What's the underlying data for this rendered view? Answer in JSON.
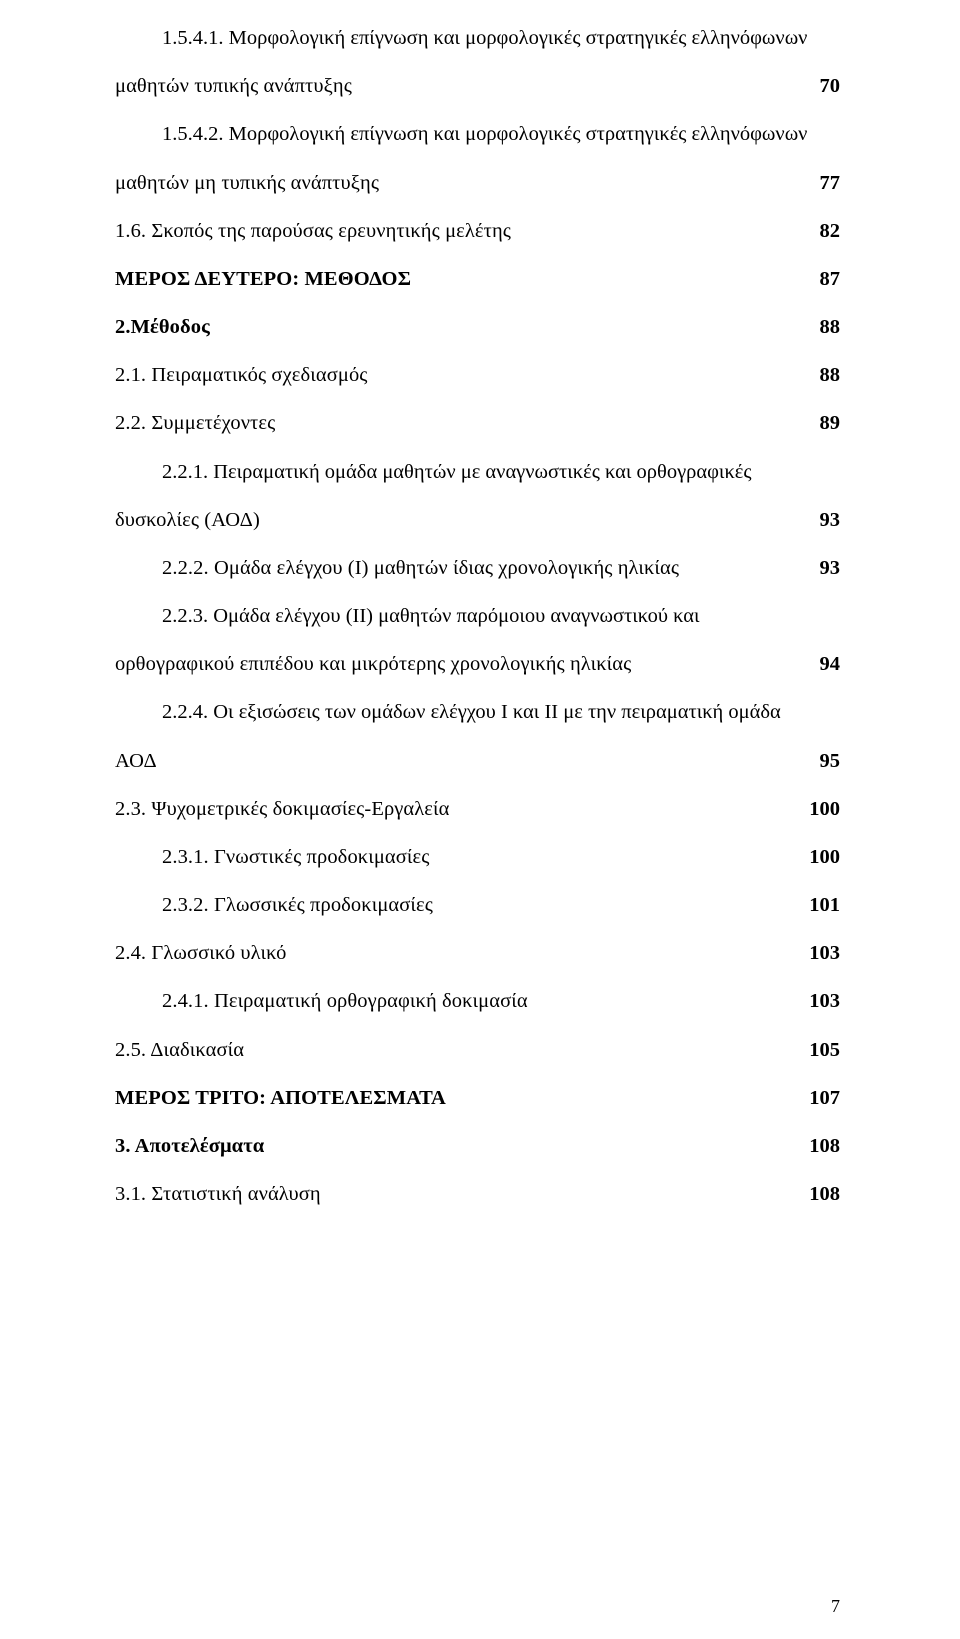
{
  "entries": {
    "e1_first": "1.5.4.1. Μορφολογική επίγνωση και μορφολογικές στρατηγικές ελληνόφωνων",
    "e1_cont": "μαθητών τυπικής ανάπτυξης",
    "e1_pg": "70",
    "e2_first": "1.5.4.2. Μορφολογική επίγνωση και μορφολογικές στρατηγικές ελληνόφωνων",
    "e2_cont": "μαθητών μη τυπικής ανάπτυξης",
    "e2_pg": "77",
    "e3": "1.6. Σκοπός της παρούσας ερευνητικής μελέτης",
    "e3_pg": "82",
    "e4": "ΜΕΡΟΣ ΔΕΥΤΕΡΟ: ΜΕΘΟΔΟΣ",
    "e4_pg": "87",
    "e5": "2.Μέθοδος",
    "e5_pg": "88",
    "e6": "2.1. Πειραματικός σχεδιασμός",
    "e6_pg": "88",
    "e7": "2.2. Συμμετέχοντες",
    "e7_pg": "89",
    "e8_first": "2.2.1. Πειραματική ομάδα μαθητών με αναγνωστικές και ορθογραφικές",
    "e8_cont": "δυσκολίες (ΑΟΔ)",
    "e8_pg": "93",
    "e9": "2.2.2. Ομάδα ελέγχου (Ι) μαθητών ίδιας χρονολογικής ηλικίας",
    "e9_pg": "93",
    "e10_first": "2.2.3. Ομάδα ελέγχου (ΙΙ) μαθητών παρόμοιου αναγνωστικού και",
    "e10_cont": "ορθογραφικού επιπέδου και μικρότερης χρονολογικής ηλικίας",
    "e10_pg": "94",
    "e11_first": "2.2.4. Οι εξισώσεις των ομάδων ελέγχου Ι και ΙΙ με την πειραματική ομάδα",
    "e11_cont": "ΑΟΔ",
    "e11_pg": "95",
    "e12": "2.3. Ψυχομετρικές δοκιμασίες-Εργαλεία",
    "e12_pg": "100",
    "e13": "2.3.1. Γνωστικές προδοκιμασίες",
    "e13_pg": "100",
    "e14": "2.3.2. Γλωσσικές προδοκιμασίες",
    "e14_pg": "101",
    "e15": "2.4. Γλωσσικό υλικό",
    "e15_pg": "103",
    "e16": "2.4.1. Πειραματική ορθογραφική δοκιμασία",
    "e16_pg": "103",
    "e17": "2.5. Διαδικασία",
    "e17_pg": "105",
    "e18": "ΜΕΡΟΣ ΤΡΙΤΟ: ΑΠΟΤΕΛΕΣΜΑΤΑ",
    "e18_pg": "107",
    "e19": "3. Αποτελέσματα",
    "e19_pg": "108",
    "e20": "3.1. Στατιστική ανάλυση",
    "e20_pg": "108"
  },
  "page_number": "7",
  "colors": {
    "text": "#000000",
    "background": "#ffffff"
  },
  "typography": {
    "body_font": "Times New Roman",
    "body_size_pt": 15,
    "line_height": 2.35
  }
}
